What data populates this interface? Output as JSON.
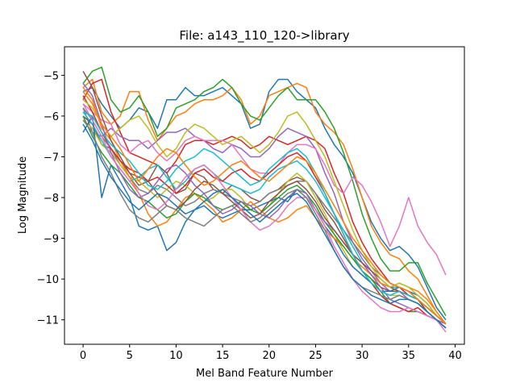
{
  "chart_data": {
    "type": "line",
    "title": "File: a143_110_120->library",
    "xlabel": "Mel Band Feature Number",
    "ylabel": "Log Magnitude",
    "xlim": [
      -2,
      41
    ],
    "ylim": [
      -11.6,
      -4.3
    ],
    "xticks": [
      0,
      5,
      10,
      15,
      20,
      25,
      30,
      35,
      40
    ],
    "yticks": [
      -11,
      -10,
      -9,
      -8,
      -7,
      -6,
      -5
    ],
    "grid": false,
    "legend": "none",
    "colors": [
      "#1f77b4",
      "#ff7f0e",
      "#2ca02c",
      "#d62728",
      "#9467bd",
      "#8c564b",
      "#e377c2",
      "#7f7f7f",
      "#bcbd22",
      "#17becf"
    ],
    "series": [
      {
        "values": [
          -5.4,
          -5.3,
          -5.7,
          -6.0,
          -6.3,
          -6.1,
          -5.8,
          -5.9,
          -6.3,
          -5.6,
          -5.6,
          -5.3,
          -5.5,
          -5.5,
          -5.4,
          -5.3,
          -5.5,
          -5.7,
          -6.3,
          -6.2,
          -5.4,
          -5.1,
          -5.1,
          -5.4,
          -5.6,
          -5.8,
          -6.3,
          -6.7,
          -7.0,
          -7.4,
          -8.0,
          -8.6,
          -9.0,
          -9.3,
          -9.2,
          -9.4,
          -9.7,
          -10.2,
          -10.7,
          -11.0
        ]
      },
      {
        "values": [
          -5.3,
          -5.1,
          -5.9,
          -6.2,
          -6.0,
          -5.4,
          -5.4,
          -6.1,
          -6.6,
          -6.3,
          -6.0,
          -5.9,
          -5.7,
          -5.6,
          -5.6,
          -5.5,
          -5.3,
          -5.6,
          -6.2,
          -6.0,
          -5.5,
          -5.4,
          -5.3,
          -5.2,
          -5.3,
          -5.9,
          -6.2,
          -6.4,
          -6.7,
          -7.3,
          -8.0,
          -8.7,
          -9.1,
          -9.4,
          -9.5,
          -9.8,
          -10.0,
          -10.4,
          -10.8,
          -11.1
        ]
      },
      {
        "values": [
          -5.2,
          -4.9,
          -4.8,
          -5.6,
          -5.9,
          -5.8,
          -5.5,
          -5.9,
          -6.5,
          -6.3,
          -5.8,
          -5.7,
          -5.6,
          -5.4,
          -5.3,
          -5.1,
          -5.3,
          -5.7,
          -6.0,
          -6.1,
          -5.8,
          -5.5,
          -5.3,
          -5.6,
          -5.6,
          -5.6,
          -5.9,
          -6.3,
          -6.9,
          -7.6,
          -8.4,
          -9.0,
          -9.5,
          -9.8,
          -9.8,
          -9.6,
          -9.6,
          -10.1,
          -10.5,
          -10.9
        ]
      },
      {
        "values": [
          -5.6,
          -5.2,
          -5.1,
          -5.9,
          -6.4,
          -6.9,
          -7.0,
          -7.1,
          -7.2,
          -7.4,
          -7.1,
          -6.7,
          -6.6,
          -6.6,
          -6.7,
          -6.6,
          -6.5,
          -6.6,
          -6.8,
          -6.7,
          -6.5,
          -6.6,
          -6.7,
          -6.6,
          -6.5,
          -6.6,
          -6.8,
          -7.4,
          -7.9,
          -8.6,
          -9.1,
          -9.5,
          -9.8,
          -10.1,
          -10.2,
          -10.4,
          -10.5,
          -10.8,
          -11.0,
          -11.2
        ]
      },
      {
        "values": [
          -5.8,
          -6.4,
          -6.5,
          -6.3,
          -6.5,
          -6.6,
          -6.6,
          -6.8,
          -6.6,
          -6.4,
          -6.4,
          -6.3,
          -6.5,
          -6.6,
          -6.8,
          -6.9,
          -6.7,
          -6.8,
          -7.0,
          -7.0,
          -6.8,
          -6.5,
          -6.3,
          -6.4,
          -6.5,
          -6.8,
          -7.4,
          -7.9,
          -8.6,
          -9.1,
          -9.5,
          -9.8,
          -10.1,
          -10.3,
          -10.3,
          -10.5,
          -10.6,
          -10.8,
          -11.0,
          -11.2
        ]
      },
      {
        "values": [
          -6.0,
          -6.2,
          -6.7,
          -6.8,
          -7.1,
          -7.4,
          -7.7,
          -7.6,
          -7.2,
          -7.4,
          -7.9,
          -7.8,
          -7.4,
          -7.5,
          -7.8,
          -7.9,
          -7.7,
          -7.8,
          -8.0,
          -8.1,
          -7.9,
          -7.8,
          -7.6,
          -7.5,
          -7.6,
          -7.9,
          -8.3,
          -8.6,
          -9.0,
          -9.4,
          -9.8,
          -10.0,
          -10.2,
          -10.3,
          -10.3,
          -10.4,
          -10.5,
          -10.8,
          -11.0,
          -11.2
        ]
      },
      {
        "values": [
          -5.7,
          -5.9,
          -6.1,
          -6.2,
          -6.7,
          -6.9,
          -6.7,
          -6.6,
          -6.9,
          -7.1,
          -6.9,
          -6.6,
          -6.5,
          -6.6,
          -6.6,
          -6.6,
          -6.7,
          -7.0,
          -7.3,
          -7.4,
          -7.4,
          -7.2,
          -6.9,
          -6.7,
          -6.7,
          -6.8,
          -7.2,
          -7.7,
          -7.9,
          -7.5,
          -7.7,
          -8.1,
          -8.6,
          -9.2,
          -8.7,
          -8.0,
          -8.7,
          -9.1,
          -9.4,
          -9.9
        ]
      },
      {
        "values": [
          -5.8,
          -6.1,
          -6.5,
          -6.8,
          -7.2,
          -7.5,
          -7.8,
          -7.9,
          -7.7,
          -7.8,
          -8.0,
          -8.2,
          -8.1,
          -7.9,
          -7.8,
          -7.9,
          -8.0,
          -8.1,
          -8.2,
          -8.1,
          -7.9,
          -7.8,
          -7.7,
          -7.6,
          -7.6,
          -7.9,
          -8.2,
          -8.5,
          -8.8,
          -9.1,
          -9.4,
          -9.7,
          -9.9,
          -10.1,
          -10.2,
          -10.3,
          -10.5,
          -10.7,
          -10.9,
          -11.1
        ]
      },
      {
        "values": [
          -6.1,
          -6.3,
          -6.7,
          -6.9,
          -7.2,
          -7.5,
          -7.6,
          -7.8,
          -8.0,
          -7.8,
          -7.6,
          -7.7,
          -7.9,
          -8.1,
          -8.0,
          -7.8,
          -7.8,
          -8.0,
          -8.3,
          -8.4,
          -8.2,
          -7.9,
          -7.6,
          -7.4,
          -7.6,
          -8.0,
          -8.4,
          -8.9,
          -9.3,
          -9.7,
          -9.9,
          -10.1,
          -10.3,
          -10.4,
          -10.4,
          -10.5,
          -10.6,
          -10.8,
          -11.0,
          -11.2
        ]
      },
      {
        "values": [
          -5.9,
          -6.2,
          -6.6,
          -7.0,
          -7.3,
          -7.6,
          -7.5,
          -7.3,
          -7.2,
          -7.5,
          -7.8,
          -7.6,
          -7.3,
          -7.2,
          -7.4,
          -7.6,
          -7.7,
          -7.8,
          -7.9,
          -7.8,
          -7.5,
          -7.3,
          -7.2,
          -7.1,
          -7.3,
          -7.6,
          -8.0,
          -8.4,
          -8.8,
          -9.2,
          -9.6,
          -9.9,
          -10.1,
          -10.2,
          -10.2,
          -10.3,
          -10.5,
          -10.7,
          -10.9,
          -11.1
        ]
      },
      {
        "values": [
          -6.4,
          -6.0,
          -8.0,
          -7.2,
          -7.6,
          -8.0,
          -8.7,
          -8.8,
          -8.7,
          -9.3,
          -9.1,
          -8.6,
          -8.3,
          -8.2,
          -8.4,
          -8.5,
          -8.4,
          -8.3,
          -8.3,
          -8.2,
          -8.1,
          -8.0,
          -8.1,
          -7.8,
          -8.0,
          -8.3,
          -8.7,
          -9.0,
          -9.4,
          -9.7,
          -9.9,
          -10.1,
          -10.3,
          -10.3,
          -10.2,
          -10.3,
          -10.4,
          -10.6,
          -10.9,
          -11.1
        ]
      },
      {
        "values": [
          -5.3,
          -5.6,
          -6.3,
          -6.6,
          -7.1,
          -7.5,
          -7.9,
          -8.4,
          -8.7,
          -8.6,
          -8.3,
          -8.0,
          -7.9,
          -8.1,
          -8.3,
          -8.6,
          -8.5,
          -8.3,
          -8.1,
          -8.3,
          -8.5,
          -8.6,
          -8.5,
          -8.3,
          -8.2,
          -8.5,
          -8.8,
          -9.0,
          -9.2,
          -9.5,
          -9.7,
          -9.9,
          -10.1,
          -10.2,
          -10.1,
          -10.2,
          -10.3,
          -10.5,
          -10.8,
          -11.1
        ]
      },
      {
        "values": [
          -6.0,
          -6.5,
          -6.9,
          -7.2,
          -7.4,
          -7.7,
          -8.0,
          -8.1,
          -8.3,
          -8.5,
          -8.4,
          -8.1,
          -7.9,
          -8.0,
          -8.2,
          -8.3,
          -8.2,
          -8.1,
          -8.3,
          -8.4,
          -8.2,
          -8.0,
          -7.8,
          -7.7,
          -7.9,
          -8.2,
          -8.6,
          -8.9,
          -9.2,
          -9.5,
          -9.8,
          -10.0,
          -10.3,
          -10.6,
          -10.7,
          -10.8,
          -10.8,
          -10.9,
          -11.0,
          -11.1
        ]
      },
      {
        "values": [
          -5.5,
          -5.9,
          -6.4,
          -6.8,
          -7.1,
          -7.3,
          -7.4,
          -7.6,
          -7.5,
          -7.7,
          -7.9,
          -7.7,
          -7.4,
          -7.3,
          -7.5,
          -7.6,
          -7.4,
          -7.3,
          -7.5,
          -7.6,
          -7.4,
          -7.2,
          -7.0,
          -6.9,
          -7.1,
          -7.5,
          -7.9,
          -8.4,
          -8.9,
          -9.4,
          -9.8,
          -10.1,
          -10.4,
          -10.6,
          -10.7,
          -10.8,
          -10.7,
          -10.9,
          -11.0,
          -11.2
        ]
      },
      {
        "values": [
          -5.2,
          -5.5,
          -6.2,
          -6.9,
          -7.4,
          -7.8,
          -8.0,
          -7.9,
          -7.6,
          -7.3,
          -7.2,
          -7.4,
          -7.7,
          -7.9,
          -8.2,
          -8.4,
          -8.3,
          -8.1,
          -8.2,
          -8.4,
          -8.5,
          -8.3,
          -8.0,
          -7.8,
          -7.9,
          -8.3,
          -8.6,
          -8.8,
          -9.1,
          -9.4,
          -9.6,
          -9.9,
          -10.2,
          -10.5,
          -10.6,
          -10.7,
          -10.8,
          -10.9,
          -11.0,
          -11.1
        ]
      },
      {
        "values": [
          -4.9,
          -5.3,
          -6.0,
          -6.6,
          -7.0,
          -7.4,
          -7.5,
          -7.6,
          -7.9,
          -8.2,
          -8.3,
          -8.1,
          -7.8,
          -7.6,
          -7.7,
          -7.9,
          -8.1,
          -8.3,
          -8.5,
          -8.4,
          -8.1,
          -7.9,
          -7.7,
          -7.6,
          -7.8,
          -8.1,
          -8.5,
          -8.8,
          -9.1,
          -9.4,
          -9.6,
          -9.8,
          -10.0,
          -10.2,
          -10.3,
          -10.4,
          -10.5,
          -10.7,
          -10.9,
          -11.1
        ]
      },
      {
        "values": [
          -5.7,
          -6.1,
          -6.5,
          -7.0,
          -7.3,
          -7.6,
          -7.9,
          -8.2,
          -8.3,
          -8.1,
          -7.8,
          -7.5,
          -7.3,
          -7.2,
          -7.4,
          -7.7,
          -8.0,
          -8.3,
          -8.6,
          -8.8,
          -8.7,
          -8.5,
          -8.2,
          -8.0,
          -8.0,
          -8.3,
          -8.7,
          -9.2,
          -9.6,
          -10.0,
          -10.3,
          -10.5,
          -10.7,
          -10.8,
          -10.8,
          -10.7,
          -10.8,
          -10.9,
          -11.0,
          -11.3
        ]
      },
      {
        "values": [
          -6.1,
          -6.4,
          -7.0,
          -7.4,
          -7.9,
          -8.3,
          -8.5,
          -8.6,
          -8.4,
          -8.2,
          -8.3,
          -8.5,
          -8.6,
          -8.7,
          -8.5,
          -8.3,
          -8.2,
          -8.4,
          -8.6,
          -8.5,
          -8.3,
          -8.1,
          -7.9,
          -7.8,
          -8.0,
          -8.4,
          -8.8,
          -9.3,
          -9.7,
          -10.0,
          -10.2,
          -10.3,
          -10.4,
          -10.5,
          -10.4,
          -10.5,
          -10.6,
          -10.8,
          -11.0,
          -11.2
        ]
      },
      {
        "values": [
          -5.6,
          -5.8,
          -6.2,
          -6.5,
          -6.3,
          -6.1,
          -6.0,
          -6.3,
          -6.7,
          -7.0,
          -6.8,
          -6.4,
          -6.2,
          -6.3,
          -6.5,
          -6.7,
          -6.6,
          -6.5,
          -6.7,
          -6.9,
          -6.7,
          -6.4,
          -6.0,
          -5.9,
          -6.2,
          -6.6,
          -7.0,
          -7.6,
          -8.2,
          -8.8,
          -9.3,
          -9.7,
          -10.0,
          -10.2,
          -10.1,
          -10.2,
          -10.4,
          -10.6,
          -10.9,
          -11.1
        ]
      },
      {
        "values": [
          -5.9,
          -6.0,
          -6.4,
          -6.7,
          -6.9,
          -7.1,
          -7.4,
          -7.7,
          -7.8,
          -7.6,
          -7.3,
          -7.1,
          -7.0,
          -6.8,
          -6.9,
          -7.1,
          -7.3,
          -7.5,
          -7.7,
          -7.6,
          -7.3,
          -7.1,
          -6.9,
          -6.8,
          -7.0,
          -7.4,
          -7.9,
          -8.4,
          -8.9,
          -9.4,
          -9.8,
          -10.1,
          -10.3,
          -10.4,
          -10.3,
          -10.4,
          -10.5,
          -10.7,
          -10.9,
          -11.1
        ]
      },
      {
        "values": [
          -6.2,
          -6.6,
          -7.1,
          -7.5,
          -7.8,
          -8.1,
          -8.3,
          -8.1,
          -7.9,
          -8.0,
          -8.2,
          -8.4,
          -8.3,
          -8.1,
          -7.9,
          -7.8,
          -8.0,
          -8.2,
          -8.4,
          -8.6,
          -8.4,
          -8.2,
          -8.0,
          -7.9,
          -8.1,
          -8.5,
          -8.9,
          -9.3,
          -9.7,
          -10.0,
          -10.2,
          -10.4,
          -10.5,
          -10.6,
          -10.5,
          -10.5,
          -10.6,
          -10.8,
          -11.0,
          -11.2
        ]
      },
      {
        "values": [
          -5.4,
          -5.7,
          -6.2,
          -6.5,
          -6.8,
          -7.2,
          -7.6,
          -7.3,
          -7.0,
          -6.8,
          -6.9,
          -7.2,
          -7.5,
          -7.7,
          -7.6,
          -7.4,
          -7.2,
          -7.1,
          -7.3,
          -7.5,
          -7.6,
          -7.4,
          -7.2,
          -7.0,
          -7.1,
          -7.4,
          -7.8,
          -8.2,
          -8.6,
          -9.0,
          -9.3,
          -9.6,
          -9.9,
          -10.1,
          -10.2,
          -10.3,
          -10.5,
          -10.7,
          -10.9,
          -11.1
        ]
      }
    ]
  }
}
